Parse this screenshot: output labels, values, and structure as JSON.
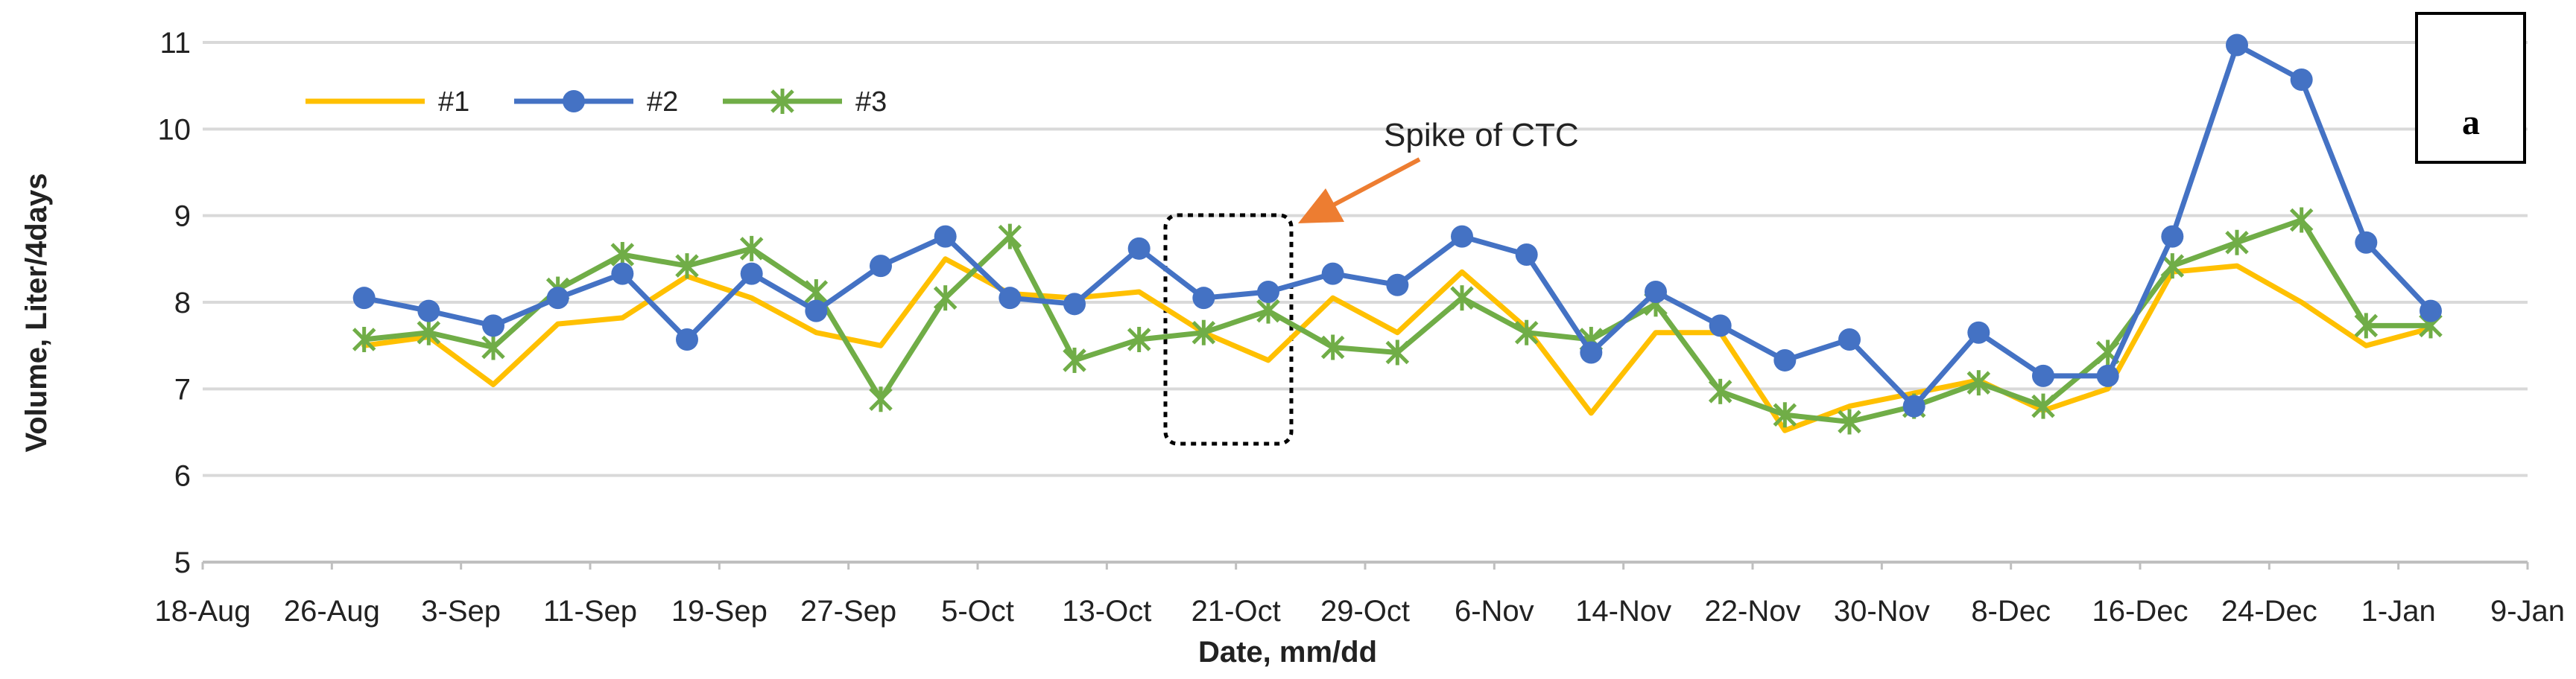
{
  "chart_data": {
    "type": "line",
    "title": "",
    "xlabel": "Date, mm/dd",
    "ylabel": "Volume, Liter/4days",
    "ylim": [
      5,
      11
    ],
    "yticks": [
      "5",
      "6",
      "7",
      "8",
      "9",
      "10",
      "11"
    ],
    "xlim_days": [
      0,
      144
    ],
    "xticks": [
      {
        "label": "18-Aug",
        "day": 0
      },
      {
        "label": "26-Aug",
        "day": 8
      },
      {
        "label": "3-Sep",
        "day": 16
      },
      {
        "label": "11-Sep",
        "day": 24
      },
      {
        "label": "19-Sep",
        "day": 32
      },
      {
        "label": "27-Sep",
        "day": 40
      },
      {
        "label": "5-Oct",
        "day": 48
      },
      {
        "label": "13-Oct",
        "day": 56
      },
      {
        "label": "21-Oct",
        "day": 64
      },
      {
        "label": "29-Oct",
        "day": 72
      },
      {
        "label": "6-Nov",
        "day": 80
      },
      {
        "label": "14-Nov",
        "day": 88
      },
      {
        "label": "22-Nov",
        "day": 96
      },
      {
        "label": "30-Nov",
        "day": 104
      },
      {
        "label": "8-Dec",
        "day": 112
      },
      {
        "label": "16-Dec",
        "day": 120
      },
      {
        "label": "24-Dec",
        "day": 128
      },
      {
        "label": "1-Jan",
        "day": 136
      },
      {
        "label": "9-Jan",
        "day": 144
      }
    ],
    "grid": true,
    "legend_position": "top-left",
    "series": [
      {
        "name": "#1",
        "color": "#FFC000",
        "marker": "none",
        "x": [
          10,
          14,
          18,
          22,
          26,
          30,
          34,
          38,
          42,
          46,
          50,
          54,
          58,
          62,
          66,
          70,
          74,
          78,
          82,
          86,
          90,
          94,
          98,
          102,
          106,
          110,
          114,
          118,
          122,
          126,
          130,
          134,
          138
        ],
        "values": [
          7.5,
          7.6,
          7.05,
          7.75,
          7.82,
          8.3,
          8.05,
          7.65,
          7.5,
          8.5,
          8.1,
          8.05,
          8.12,
          7.65,
          7.33,
          8.05,
          7.65,
          8.35,
          7.7,
          6.72,
          7.65,
          7.65,
          6.52,
          6.8,
          6.95,
          7.1,
          6.75,
          7.0,
          8.35,
          8.42,
          8.0,
          7.5,
          7.7
        ]
      },
      {
        "name": "#2",
        "color": "#4472C4",
        "marker": "circle",
        "x": [
          10,
          14,
          18,
          22,
          26,
          30,
          34,
          38,
          42,
          46,
          50,
          54,
          58,
          62,
          66,
          70,
          74,
          78,
          82,
          86,
          90,
          94,
          98,
          102,
          106,
          110,
          114,
          118,
          122,
          126,
          130,
          134,
          138
        ],
        "values": [
          8.05,
          7.9,
          7.73,
          8.05,
          8.33,
          7.57,
          8.33,
          7.9,
          8.42,
          8.76,
          8.05,
          7.98,
          8.62,
          8.05,
          8.12,
          8.33,
          8.2,
          8.76,
          8.55,
          7.42,
          8.12,
          7.73,
          7.33,
          7.57,
          6.8,
          7.65,
          7.15,
          7.15,
          8.76,
          10.97,
          10.57,
          8.69,
          7.9
        ]
      },
      {
        "name": "#3",
        "color": "#70AD47",
        "marker": "x",
        "x": [
          10,
          14,
          18,
          22,
          26,
          30,
          34,
          38,
          42,
          46,
          50,
          54,
          58,
          62,
          66,
          70,
          74,
          78,
          82,
          86,
          90,
          94,
          98,
          102,
          106,
          110,
          114,
          118,
          122,
          126,
          130,
          134,
          138
        ],
        "values": [
          7.57,
          7.65,
          7.48,
          8.15,
          8.55,
          8.42,
          8.62,
          8.12,
          6.88,
          8.05,
          8.76,
          7.33,
          7.57,
          7.65,
          7.9,
          7.48,
          7.42,
          8.05,
          7.65,
          7.57,
          7.98,
          6.97,
          6.7,
          6.62,
          6.8,
          7.07,
          6.8,
          7.42,
          8.42,
          8.69,
          8.95,
          7.73,
          7.73
        ]
      }
    ],
    "annotations": [
      {
        "text": "Spike of CTC",
        "target_day": 64
      }
    ],
    "panel_label": "a"
  }
}
